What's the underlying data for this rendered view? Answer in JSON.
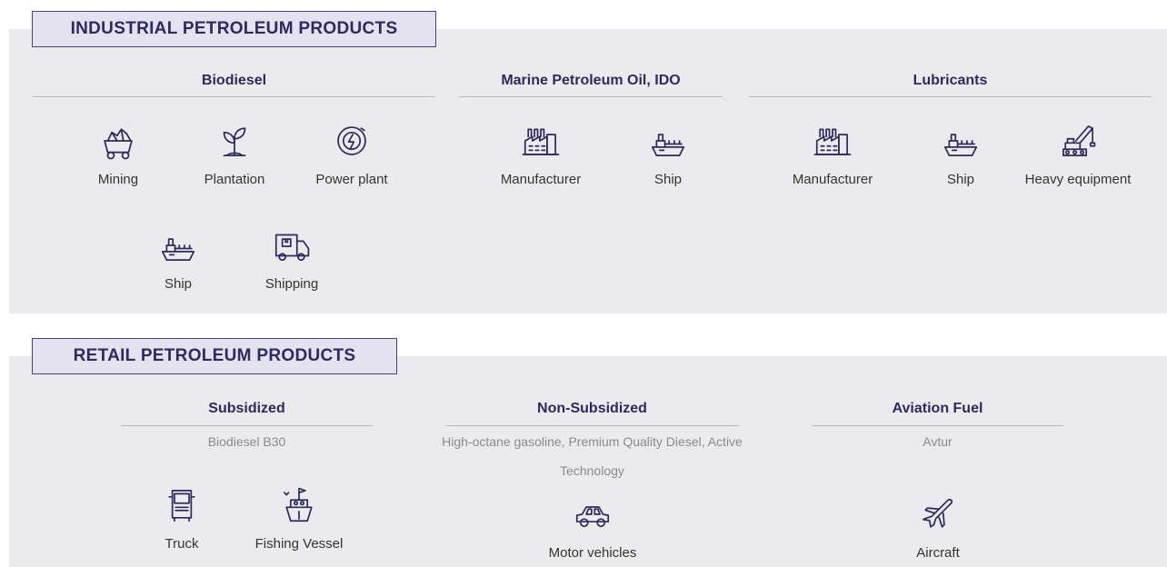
{
  "sections": [
    {
      "title": "INDUSTRIAL PETROLEUM PRODUCTS",
      "groups": [
        {
          "name": "Biodiesel",
          "items": [
            "Mining",
            "Plantation",
            "Power plant",
            "Ship",
            "Shipping"
          ]
        },
        {
          "name": "Marine Petroleum Oil, IDO",
          "items": [
            "Manufacturer",
            "Ship"
          ]
        },
        {
          "name": "Lubricants",
          "items": [
            "Manufacturer",
            "Ship",
            "Heavy equipment"
          ]
        }
      ]
    },
    {
      "title": "RETAIL PETROLEUM PRODUCTS",
      "groups": [
        {
          "name": "Subsidized",
          "subtitle": "Biodiesel B30",
          "items": [
            "Truck",
            "Fishing Vessel"
          ]
        },
        {
          "name": "Non-Subsidized",
          "subtitle": "High-octane gasoline, Premium Quality Diesel, Active Technology",
          "items": [
            "Motor vehicles"
          ]
        },
        {
          "name": "Aviation Fuel",
          "subtitle": "Avtur",
          "items": [
            "Aircraft"
          ]
        }
      ]
    }
  ]
}
